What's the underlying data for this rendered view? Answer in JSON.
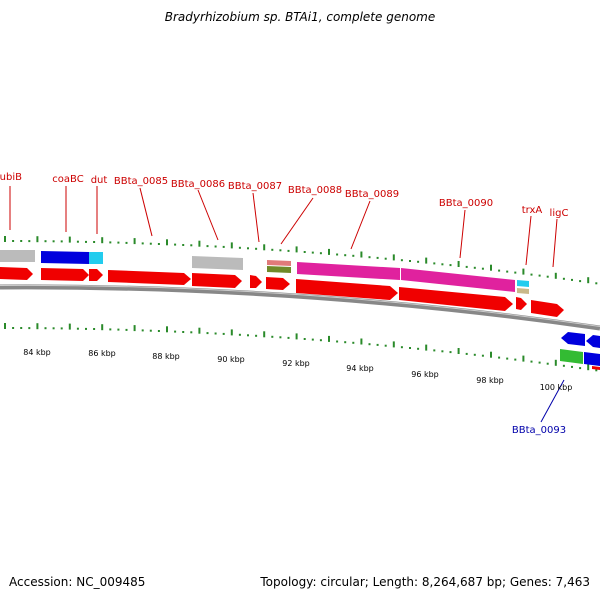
{
  "title": "Bradyrhizobium sp. BTAi1, complete genome",
  "accession": "Accession: NC_009485",
  "summary": "Topology: circular; Length: 8,264,687 bp; Genes: 7,463",
  "colors": {
    "cds": "#f00000",
    "backbone": "#888888",
    "label_forward": "#cc0000",
    "label_reverse": "#0000aa",
    "tick": "#2a8a2a",
    "hypothetical": "#bbbbbb",
    "blue_feature": "#0000dd",
    "cyan_feature": "#22ccee",
    "magenta_feature": "#e0229e",
    "green_feature": "#33bb33",
    "olive_feature": "#6f8a2a",
    "salmon_feature": "#e07a7a"
  },
  "scale": {
    "labels": [
      "84 kbp",
      "86 kbp",
      "88 kbp",
      "90 kbp",
      "92 kbp",
      "94 kbp",
      "96 kbp",
      "98 kbp",
      "100 kbp"
    ]
  },
  "genes_forward": [
    {
      "label": "ubiB"
    },
    {
      "label": "coaBC"
    },
    {
      "label": "dut"
    },
    {
      "label": "BBta_0085"
    },
    {
      "label": "BBta_0086"
    },
    {
      "label": "BBta_0087"
    },
    {
      "label": "BBta_0088"
    },
    {
      "label": "BBta_0089"
    },
    {
      "label": "BBta_0090"
    },
    {
      "label": "trxA"
    },
    {
      "label": "ligC"
    }
  ],
  "genes_reverse": [
    {
      "label": "BBta_0093"
    }
  ]
}
